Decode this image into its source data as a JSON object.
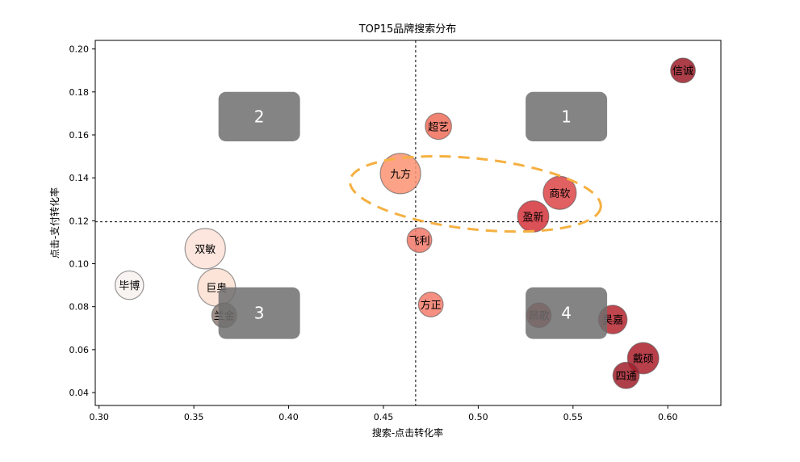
{
  "chart_data": {
    "type": "scatter",
    "title": "TOP15品牌搜索分布",
    "xlabel": "搜索-点击转化率",
    "ylabel": "点击-支付转化率",
    "xlim": [
      0.298,
      0.628
    ],
    "ylim": [
      0.034,
      0.204
    ],
    "xticks": [
      "0.30",
      "0.35",
      "0.40",
      "0.45",
      "0.50",
      "0.55",
      "0.60"
    ],
    "yticks": [
      "0.04",
      "0.06",
      "0.08",
      "0.10",
      "0.12",
      "0.14",
      "0.16",
      "0.18",
      "0.20"
    ],
    "grid": false,
    "crosshair": {
      "x": 0.467,
      "y": 0.1195
    },
    "colormap": "Reds",
    "points": [
      {
        "name": "毕博",
        "x": 0.316,
        "y": 0.09,
        "size": 2,
        "color": "#f8f1ef"
      },
      {
        "name": "双敏",
        "x": 0.356,
        "y": 0.107,
        "size": 4,
        "color": "#fde2d8"
      },
      {
        "name": "巨奥",
        "x": 0.362,
        "y": 0.089,
        "size": 3.5,
        "color": "#fddfd2"
      },
      {
        "name": "兰金",
        "x": 0.366,
        "y": 0.076,
        "size": 1.5,
        "color": "#8d7b76"
      },
      {
        "name": "九方",
        "x": 0.459,
        "y": 0.142,
        "size": 4,
        "color": "#fc9272"
      },
      {
        "name": "飞利",
        "x": 0.469,
        "y": 0.111,
        "size": 1.5,
        "color": "#f07868"
      },
      {
        "name": "方正",
        "x": 0.475,
        "y": 0.081,
        "size": 1.5,
        "color": "#f37b6b"
      },
      {
        "name": "超艺",
        "x": 0.479,
        "y": 0.164,
        "size": 1.7,
        "color": "#ef6d5b"
      },
      {
        "name": "盈新",
        "x": 0.529,
        "y": 0.122,
        "size": 2.4,
        "color": "#d3323a"
      },
      {
        "name": "商软",
        "x": 0.543,
        "y": 0.133,
        "size": 2.7,
        "color": "#dc4446"
      },
      {
        "name": "昂歌",
        "x": 0.532,
        "y": 0.076,
        "size": 1.5,
        "color": "#b53a3e"
      },
      {
        "name": "昊嘉",
        "x": 0.571,
        "y": 0.074,
        "size": 2,
        "color": "#b5262f"
      },
      {
        "name": "戴硕",
        "x": 0.587,
        "y": 0.056,
        "size": 2.4,
        "color": "#ab1f2b"
      },
      {
        "name": "四通",
        "x": 0.578,
        "y": 0.048,
        "size": 1.7,
        "color": "#a11d29"
      },
      {
        "name": "信诚",
        "x": 0.608,
        "y": 0.19,
        "size": 1.5,
        "color": "#9c1c28"
      }
    ],
    "quadrant_boxes": [
      {
        "label": "1",
        "x0": 0.525,
        "x1": 0.568,
        "y0": 0.157,
        "y1": 0.18
      },
      {
        "label": "2",
        "x0": 0.363,
        "x1": 0.406,
        "y0": 0.157,
        "y1": 0.18
      },
      {
        "label": "3",
        "x0": 0.363,
        "x1": 0.406,
        "y0": 0.065,
        "y1": 0.089
      },
      {
        "label": "4",
        "x0": 0.525,
        "x1": 0.568,
        "y0": 0.065,
        "y1": 0.089
      }
    ],
    "highlight_ellipse": {
      "cx": 0.4985,
      "cy": 0.1325,
      "rx": 0.0665,
      "ry": 0.0165,
      "rotation": 6,
      "color": "#f5b041",
      "style": "dashed"
    }
  }
}
